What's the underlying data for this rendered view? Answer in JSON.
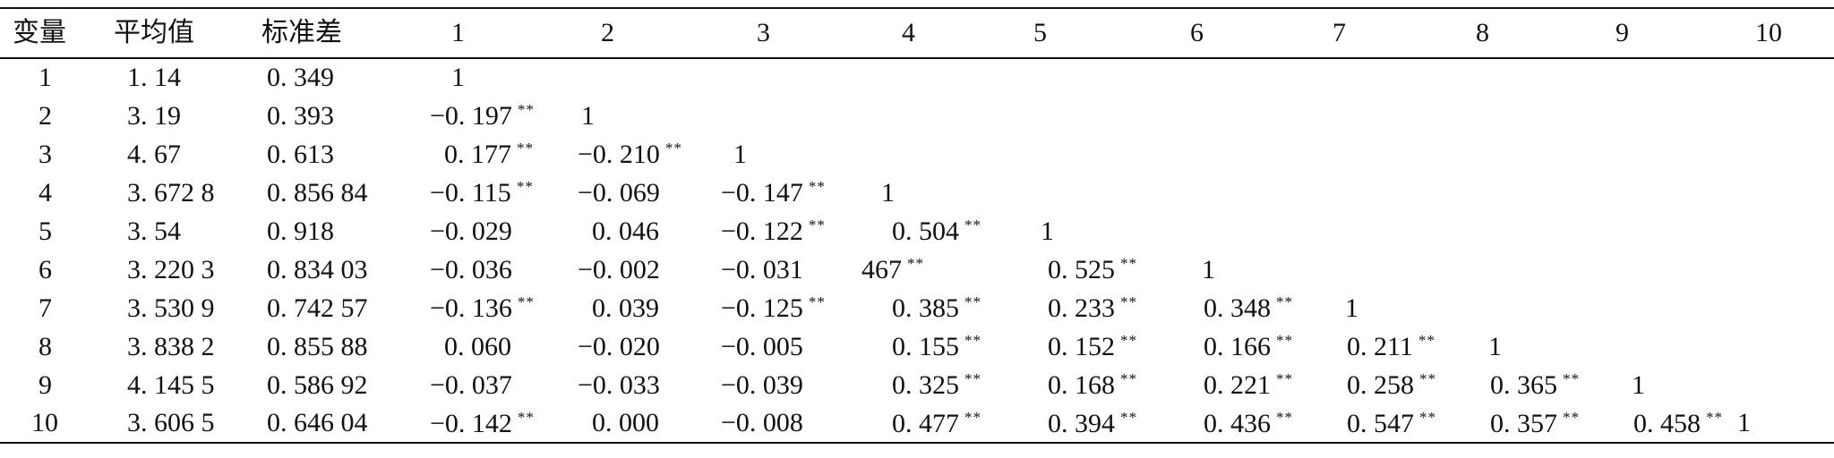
{
  "table": {
    "headers": [
      "变量",
      "平均值",
      "标准差",
      "1",
      "2",
      "3",
      "4",
      "5",
      "6",
      "7",
      "8",
      "9",
      "10"
    ],
    "rows": [
      {
        "var": "1",
        "mean": "1. 14",
        "sd": "0. 349",
        "cells": [
          {
            "v": "1",
            "s": ""
          }
        ]
      },
      {
        "var": "2",
        "mean": "3. 19",
        "sd": "0. 393",
        "cells": [
          {
            "v": "−0. 197",
            "s": "**"
          },
          {
            "v": "1",
            "s": ""
          }
        ]
      },
      {
        "var": "3",
        "mean": "4. 67",
        "sd": "0. 613",
        "cells": [
          {
            "v": "0. 177",
            "s": "**"
          },
          {
            "v": "−0. 210",
            "s": "**"
          },
          {
            "v": "1",
            "s": ""
          }
        ]
      },
      {
        "var": "4",
        "mean": "3. 672 8",
        "sd": "0. 856 84",
        "cells": [
          {
            "v": "−0. 115",
            "s": "**"
          },
          {
            "v": "−0. 069",
            "s": ""
          },
          {
            "v": "−0. 147",
            "s": "**"
          },
          {
            "v": "1",
            "s": ""
          }
        ]
      },
      {
        "var": "5",
        "mean": "3. 54",
        "sd": "0. 918",
        "cells": [
          {
            "v": "−0. 029",
            "s": ""
          },
          {
            "v": "0. 046",
            "s": ""
          },
          {
            "v": "−0. 122",
            "s": "**"
          },
          {
            "v": "0. 504",
            "s": "**"
          },
          {
            "v": "1",
            "s": ""
          }
        ]
      },
      {
        "var": "6",
        "mean": "3. 220 3",
        "sd": "0. 834 03",
        "cells": [
          {
            "v": "−0. 036",
            "s": ""
          },
          {
            "v": "−0. 002",
            "s": ""
          },
          {
            "v": "−0. 031",
            "s": ""
          },
          {
            "v": "467",
            "s": "**"
          },
          {
            "v": "0. 525",
            "s": "**"
          },
          {
            "v": "1",
            "s": ""
          }
        ]
      },
      {
        "var": "7",
        "mean": "3. 530 9",
        "sd": "0. 742 57",
        "cells": [
          {
            "v": "−0. 136",
            "s": "**"
          },
          {
            "v": "0. 039",
            "s": ""
          },
          {
            "v": "−0. 125",
            "s": "**"
          },
          {
            "v": "0. 385",
            "s": "**"
          },
          {
            "v": "0. 233",
            "s": "**"
          },
          {
            "v": "0. 348",
            "s": "**"
          },
          {
            "v": "1",
            "s": ""
          }
        ]
      },
      {
        "var": "8",
        "mean": "3. 838 2",
        "sd": "0. 855 88",
        "cells": [
          {
            "v": "0. 060",
            "s": ""
          },
          {
            "v": "−0. 020",
            "s": ""
          },
          {
            "v": "−0. 005",
            "s": ""
          },
          {
            "v": "0. 155",
            "s": "**"
          },
          {
            "v": "0. 152",
            "s": "**"
          },
          {
            "v": "0. 166",
            "s": "**"
          },
          {
            "v": "0. 211",
            "s": "**"
          },
          {
            "v": "1",
            "s": ""
          }
        ]
      },
      {
        "var": "9",
        "mean": "4. 145 5",
        "sd": "0. 586 92",
        "cells": [
          {
            "v": "−0. 037",
            "s": ""
          },
          {
            "v": "−0. 033",
            "s": ""
          },
          {
            "v": "−0. 039",
            "s": ""
          },
          {
            "v": "0. 325",
            "s": "**"
          },
          {
            "v": "0. 168",
            "s": "**"
          },
          {
            "v": "0. 221",
            "s": "**"
          },
          {
            "v": "0. 258",
            "s": "**"
          },
          {
            "v": "0. 365",
            "s": "**"
          },
          {
            "v": "1",
            "s": ""
          }
        ]
      },
      {
        "var": "10",
        "mean": "3. 606 5",
        "sd": "0. 646 04",
        "cells": [
          {
            "v": "−0. 142",
            "s": "**"
          },
          {
            "v": "0. 000",
            "s": ""
          },
          {
            "v": "−0. 008",
            "s": ""
          },
          {
            "v": "0. 477",
            "s": "**"
          },
          {
            "v": "0. 394",
            "s": "**"
          },
          {
            "v": "0. 436",
            "s": "**"
          },
          {
            "v": "0. 547",
            "s": "**"
          },
          {
            "v": "0. 357",
            "s": "**"
          },
          {
            "v": "0. 458",
            "s": "**"
          },
          {
            "v": "1",
            "s": ""
          }
        ]
      }
    ]
  }
}
